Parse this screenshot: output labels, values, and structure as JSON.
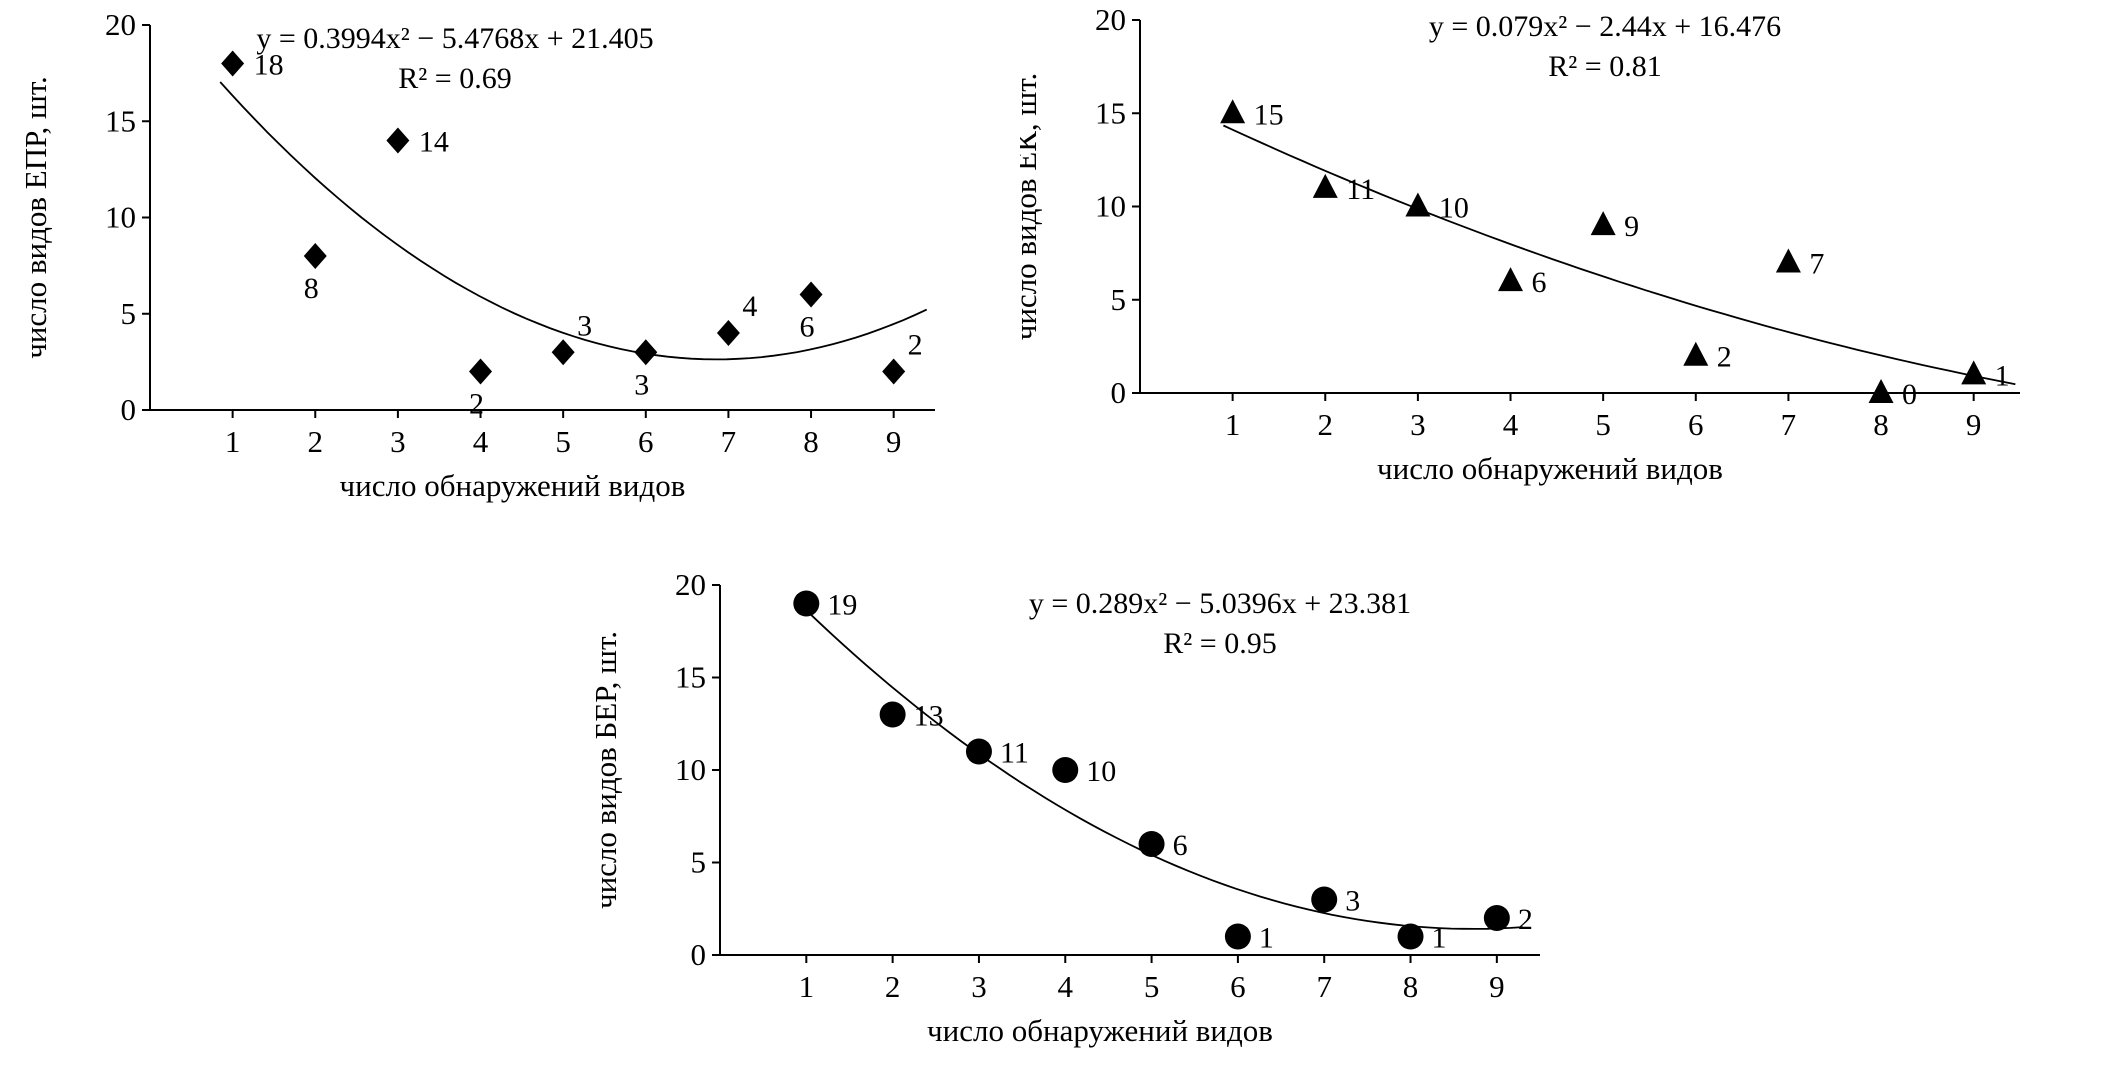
{
  "figure": {
    "background": "#ffffff",
    "ink": "#000000"
  },
  "chart_data": [
    {
      "id": "epr",
      "type": "scatter",
      "marker": "diamond",
      "xlabel": "число обнаружений видов",
      "ylabel": "число видов ЕПР, шт.",
      "equation": "y = 0.3994x² − 5.4768x + 21.405",
      "r_squared": "R² = 0.69",
      "fit": {
        "a": 0.3994,
        "b": -5.4768,
        "c": 21.405,
        "range": [
          0.85,
          9.4
        ]
      },
      "xlim": [
        0,
        9.5
      ],
      "ylim": [
        0,
        20
      ],
      "xticks": [
        1,
        2,
        3,
        4,
        5,
        6,
        7,
        8,
        9
      ],
      "yticks": [
        0,
        5,
        10,
        15,
        20
      ],
      "grid": false,
      "legend": "none",
      "points": [
        {
          "x": 1,
          "y": 18,
          "label": "18",
          "label_pos": "right"
        },
        {
          "x": 2,
          "y": 8,
          "label": "8",
          "label_pos": "below"
        },
        {
          "x": 3,
          "y": 14,
          "label": "14",
          "label_pos": "right"
        },
        {
          "x": 4,
          "y": 2,
          "label": "2",
          "label_pos": "below"
        },
        {
          "x": 5,
          "y": 3,
          "label": "3",
          "label_pos": "above"
        },
        {
          "x": 6,
          "y": 3,
          "label": "3",
          "label_pos": "below"
        },
        {
          "x": 7,
          "y": 4,
          "label": "4",
          "label_pos": "above"
        },
        {
          "x": 8,
          "y": 6,
          "label": "6",
          "label_pos": "below"
        },
        {
          "x": 9,
          "y": 2,
          "label": "2",
          "label_pos": "above"
        }
      ]
    },
    {
      "id": "ek",
      "type": "scatter",
      "marker": "triangle",
      "xlabel": "число обнаружений видов",
      "ylabel": "число видов ЕК, шт.",
      "equation": "y = 0.079x² − 2.44x + 16.476",
      "r_squared": "R² = 0.81",
      "fit": {
        "a": 0.079,
        "b": -2.44,
        "c": 16.476,
        "range": [
          0.9,
          9.45
        ]
      },
      "xlim": [
        0,
        9.5
      ],
      "ylim": [
        0,
        20
      ],
      "xticks": [
        1,
        2,
        3,
        4,
        5,
        6,
        7,
        8,
        9
      ],
      "yticks": [
        0,
        5,
        10,
        15,
        20
      ],
      "grid": false,
      "legend": "none",
      "points": [
        {
          "x": 1,
          "y": 15,
          "label": "15",
          "label_pos": "right"
        },
        {
          "x": 2,
          "y": 11,
          "label": "11",
          "label_pos": "right"
        },
        {
          "x": 3,
          "y": 10,
          "label": "10",
          "label_pos": "right"
        },
        {
          "x": 4,
          "y": 6,
          "label": "6",
          "label_pos": "right"
        },
        {
          "x": 5,
          "y": 9,
          "label": "9",
          "label_pos": "right"
        },
        {
          "x": 6,
          "y": 2,
          "label": "2",
          "label_pos": "right"
        },
        {
          "x": 7,
          "y": 7,
          "label": "7",
          "label_pos": "right"
        },
        {
          "x": 8,
          "y": 0,
          "label": "0",
          "label_pos": "right"
        },
        {
          "x": 9,
          "y": 1,
          "label": "1",
          "label_pos": "right"
        }
      ]
    },
    {
      "id": "ber",
      "type": "scatter",
      "marker": "circle",
      "xlabel": "число обнаружений видов",
      "ylabel": "число видов БЕР, шт.",
      "equation": "y = 0.289x² − 5.0396x + 23.381",
      "r_squared": "R² = 0.95",
      "fit": {
        "a": 0.289,
        "b": -5.0396,
        "c": 23.381,
        "range": [
          1.0,
          9.3
        ]
      },
      "xlim": [
        0,
        9.5
      ],
      "ylim": [
        0,
        20
      ],
      "xticks": [
        1,
        2,
        3,
        4,
        5,
        6,
        7,
        8,
        9
      ],
      "yticks": [
        0,
        5,
        10,
        15,
        20
      ],
      "grid": false,
      "legend": "none",
      "points": [
        {
          "x": 1,
          "y": 19,
          "label": "19",
          "label_pos": "right"
        },
        {
          "x": 2,
          "y": 13,
          "label": "13",
          "label_pos": "right"
        },
        {
          "x": 3,
          "y": 11,
          "label": "11",
          "label_pos": "right"
        },
        {
          "x": 4,
          "y": 10,
          "label": "10",
          "label_pos": "right"
        },
        {
          "x": 5,
          "y": 6,
          "label": "6",
          "label_pos": "right"
        },
        {
          "x": 6,
          "y": 1,
          "label": "1",
          "label_pos": "right"
        },
        {
          "x": 7,
          "y": 3,
          "label": "3",
          "label_pos": "right"
        },
        {
          "x": 8,
          "y": 1,
          "label": "1",
          "label_pos": "right"
        },
        {
          "x": 9,
          "y": 2,
          "label": "2",
          "label_pos": "right"
        }
      ]
    }
  ]
}
